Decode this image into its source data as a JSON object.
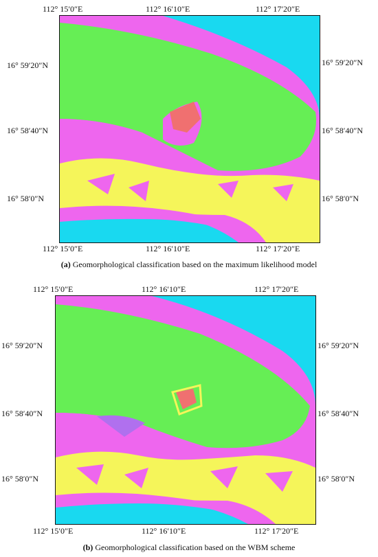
{
  "panels": [
    {
      "id": "a",
      "caption_label": "(a)",
      "caption_text": "Geomorphological classification based on the maximum likelihood model",
      "top_ticks": [
        "112°  15′0″E",
        "112°  16′10″E",
        "112°  17′20″E"
      ],
      "bottom_ticks": [
        "112°  15′0″E",
        "112°  16′10″E",
        "112°  17′20″E"
      ],
      "left_ticks": [
        "16°  59′20″N",
        "16°  58′40″N",
        "16°  58′0″N"
      ],
      "right_ticks": [
        "16°  59′20″N",
        "16°  58′40″N",
        "16°  58′0″N"
      ]
    },
    {
      "id": "b",
      "caption_label": "(b)",
      "caption_text": "Geomorphological classification based on the WBM scheme",
      "top_ticks": [
        "112°  15′0″E",
        "112°  16′10″E",
        "112°  17′20″E"
      ],
      "bottom_ticks": [
        "112°  15′0″E",
        "112°  16′10″E",
        "112°  17′20″E"
      ],
      "left_ticks": [
        "16°  59′20″N",
        "16°  58′40″N",
        "16°  58′0″N"
      ],
      "right_ticks": [
        "16°  59′20″N",
        "16°  58′40″N",
        "16°  58′0″N"
      ]
    }
  ],
  "class_colors": {
    "water": "#19d9f0",
    "vegetation": "#66ee55",
    "reef_flat": "#ee66ee",
    "sand": "#f5f55a",
    "building": "#f07070"
  }
}
